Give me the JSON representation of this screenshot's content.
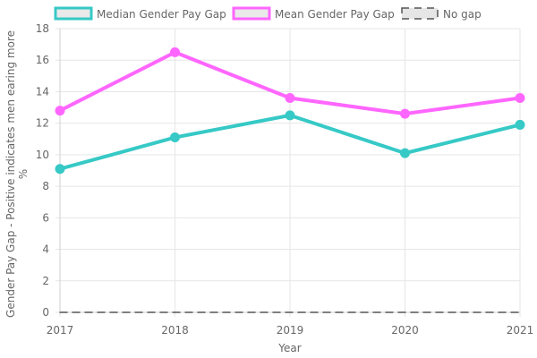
{
  "chart_data": {
    "type": "line",
    "categories": [
      "2017",
      "2018",
      "2019",
      "2020",
      "2021"
    ],
    "series": [
      {
        "name": "Median Gender Pay Gap",
        "values": [
          9.1,
          11.1,
          12.5,
          10.1,
          11.9
        ],
        "color": "#36c9c6"
      },
      {
        "name": "Mean Gender Pay Gap",
        "values": [
          12.8,
          16.5,
          13.6,
          12.6,
          13.6
        ],
        "color": "#ff66ff"
      },
      {
        "name": "No gap",
        "values": [
          0,
          0,
          0,
          0,
          0
        ],
        "color": "#555555"
      }
    ],
    "xlabel": "Year",
    "ylabel_lines": [
      "Gender Pay Gap - Positive indicates men earing more",
      "%"
    ],
    "ylim": [
      0,
      18
    ],
    "yticks": [
      0,
      2,
      4,
      6,
      8,
      10,
      12,
      14,
      16,
      18
    ],
    "grid": true,
    "legend_position": "top"
  }
}
